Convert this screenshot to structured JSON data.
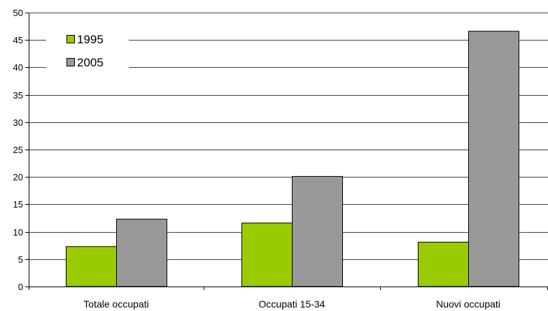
{
  "chart_data": {
    "type": "bar",
    "categories": [
      "Totale occupati",
      "Occupati 15-34",
      "Nuovi occupati"
    ],
    "series": [
      {
        "name": "1995",
        "values": [
          7.3,
          11.6,
          8.1
        ],
        "color": "#99cc00"
      },
      {
        "name": "2005",
        "values": [
          12.3,
          20.1,
          46.6
        ],
        "color": "#999999"
      }
    ],
    "ylim": [
      0,
      50
    ],
    "yticks": [
      0,
      5,
      10,
      15,
      20,
      25,
      30,
      35,
      40,
      45,
      50
    ],
    "grid": true,
    "legend": "top-left"
  }
}
